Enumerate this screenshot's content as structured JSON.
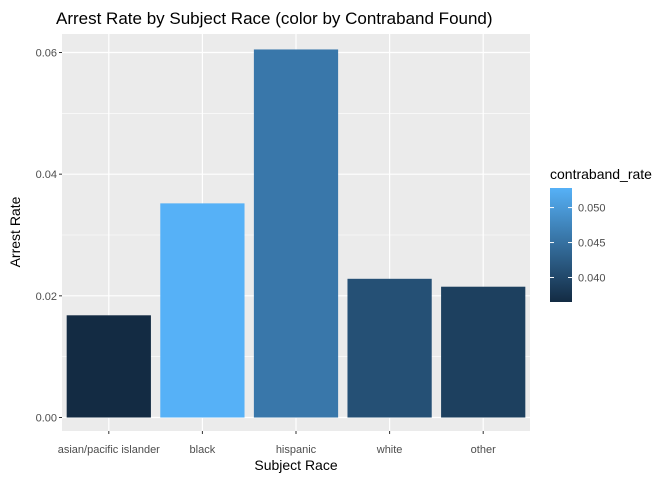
{
  "chart_data": {
    "type": "bar",
    "title": "Arrest Rate by Subject Race (color by Contraband Found)",
    "xlabel": "Subject Race",
    "ylabel": "Arrest Rate",
    "categories": [
      "asian/pacific islander",
      "black",
      "hispanic",
      "white",
      "other"
    ],
    "values": [
      0.0168,
      0.0352,
      0.0605,
      0.0228,
      0.0215
    ],
    "fill_values": [
      0.0365,
      0.0528,
      0.0458,
      0.041,
      0.039
    ],
    "ylim": [
      0,
      0.063
    ],
    "yticks": [
      0,
      0.02,
      0.04,
      0.06
    ],
    "ytick_labels": [
      "0.00",
      "0.02",
      "0.04",
      "0.06"
    ],
    "grid": true,
    "legend": {
      "title": "contraband_rate",
      "placement": "right",
      "range": [
        0.0365,
        0.0528
      ],
      "ticks": [
        0.04,
        0.045,
        0.05
      ],
      "tick_labels": [
        "0.040",
        "0.045",
        "0.050"
      ]
    },
    "colors": {
      "low": "#132B43",
      "high": "#56B1F7",
      "panel": "#EBEBEB",
      "grid": "#FFFFFF"
    }
  }
}
